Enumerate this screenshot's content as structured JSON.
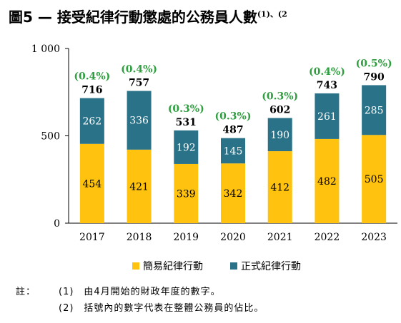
{
  "title": "圖5 — 接受紀律行動懲處的公務員人數",
  "title_sup": "(1)、(2",
  "colors": {
    "summary": "#FFC20E",
    "formal": "#2A7288",
    "pct": "#2E9E3F"
  },
  "legend": [
    "簡易紀律行動",
    "正式紀律行動"
  ],
  "notes": {
    "label": "註：",
    "items": [
      "(1)　由4月開始的財政年度的數字。",
      "(2)　括號內的數字代表在整體公務員的佔比。"
    ]
  },
  "chart_data": {
    "type": "bar",
    "stacked": true,
    "categories": [
      "2017",
      "2018",
      "2019",
      "2020",
      "2021",
      "2022",
      "2023"
    ],
    "series": [
      {
        "name": "簡易紀律行動",
        "values": [
          454,
          421,
          339,
          342,
          412,
          482,
          505
        ]
      },
      {
        "name": "正式紀律行動",
        "values": [
          262,
          336,
          192,
          145,
          190,
          261,
          285
        ]
      }
    ],
    "totals": [
      716,
      757,
      531,
      487,
      602,
      743,
      790
    ],
    "percentages": [
      "(0.4%)",
      "(0.4%)",
      "(0.3%)",
      "(0.3%)",
      "(0.3%)",
      "(0.4%)",
      "(0.5%)"
    ],
    "ylim": [
      0,
      1000
    ],
    "yticks": [
      0,
      500,
      1000
    ],
    "ytick_labels": [
      "0",
      "500",
      "1 000"
    ],
    "grid": false,
    "legend_position": "bottom"
  }
}
